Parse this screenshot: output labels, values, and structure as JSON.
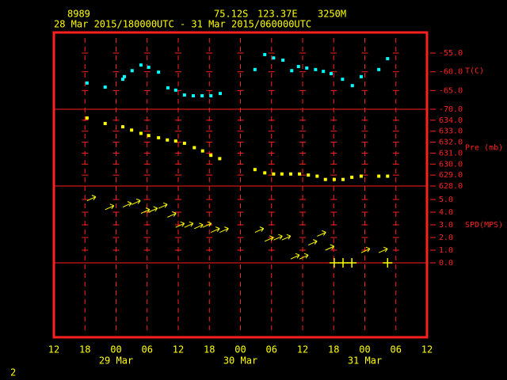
{
  "chart_data": {
    "type": "station-plot",
    "title": "8989",
    "latitude": "75.12S",
    "longitude": "123.37E",
    "elevation": "3250M",
    "subtitle": "28 Mar 2015/180000UTC - 31 Mar 2015/060000UTC",
    "page": "2",
    "xlim": [
      0,
      72
    ],
    "xticks": [
      {
        "value": 0,
        "label": "12"
      },
      {
        "value": 6,
        "label": "18"
      },
      {
        "value": 12,
        "label": "00"
      },
      {
        "value": 18,
        "label": "06"
      },
      {
        "value": 24,
        "label": "12"
      },
      {
        "value": 30,
        "label": "18"
      },
      {
        "value": 36,
        "label": "00"
      },
      {
        "value": 42,
        "label": "06"
      },
      {
        "value": 48,
        "label": "12"
      },
      {
        "value": 54,
        "label": "18"
      },
      {
        "value": 60,
        "label": "00"
      },
      {
        "value": 66,
        "label": "06"
      },
      {
        "value": 72,
        "label": "12"
      }
    ],
    "date_ticks": [
      {
        "value": 12,
        "label": "29 Mar"
      },
      {
        "value": 36,
        "label": "30 Mar"
      },
      {
        "value": 60,
        "label": "31 Mar"
      }
    ],
    "panels": [
      {
        "type": "scatter",
        "ylabel": "T(C)",
        "color": "#00ffff",
        "ylim": [
          -70,
          -49.5
        ],
        "yticks": [
          {
            "value": -55,
            "label": "-55.0"
          },
          {
            "value": -60,
            "label": "-60.0"
          },
          {
            "value": -65,
            "label": "-65.0"
          },
          {
            "value": -70,
            "label": "-70.0"
          }
        ],
        "x": [
          6.4,
          9.9,
          13.3,
          13.6,
          15.1,
          16.8,
          18.3,
          20.2,
          22.0,
          23.5,
          25.2,
          26.9,
          28.6,
          30.3,
          32.1,
          38.8,
          40.7,
          42.4,
          44.2,
          45.9,
          47.2,
          48.8,
          50.5,
          52.0,
          53.5,
          55.7,
          57.6,
          59.3,
          62.7,
          64.4
        ],
        "values": [
          -63.0,
          -64.1,
          -62.0,
          -61.3,
          -59.7,
          -58.2,
          -58.8,
          -60.1,
          -64.3,
          -64.9,
          -66.2,
          -66.4,
          -66.4,
          -66.4,
          -65.8,
          -59.4,
          -55.4,
          -56.3,
          -56.9,
          -59.7,
          -58.6,
          -59.0,
          -59.4,
          -59.9,
          -60.5,
          -62.0,
          -63.7,
          -61.3,
          -59.4,
          -56.5
        ]
      },
      {
        "type": "scatter",
        "ylabel": "Pre (mb)",
        "color": "#ffff00",
        "ylim": [
          628,
          635
        ],
        "yticks": [
          {
            "value": 634,
            "label": "634.0"
          },
          {
            "value": 633,
            "label": "633.0"
          },
          {
            "value": 632,
            "label": "632.0"
          },
          {
            "value": 631,
            "label": "631.0"
          },
          {
            "value": 630,
            "label": "630.0"
          },
          {
            "value": 629,
            "label": "629.0"
          },
          {
            "value": 628,
            "label": "628.0"
          }
        ],
        "x": [
          6.4,
          9.9,
          13.3,
          15.0,
          16.8,
          18.3,
          20.2,
          21.9,
          23.5,
          25.2,
          27.1,
          28.7,
          30.3,
          32.0,
          38.8,
          40.7,
          42.4,
          44.0,
          45.7,
          47.4,
          49.1,
          50.8,
          52.4,
          54.1,
          55.8,
          57.5,
          59.3,
          62.7,
          64.4
        ],
        "values": [
          634.2,
          633.7,
          633.4,
          633.1,
          632.8,
          632.6,
          632.4,
          632.2,
          632.1,
          631.9,
          631.5,
          631.2,
          630.8,
          630.5,
          629.5,
          629.2,
          629.1,
          629.1,
          629.1,
          629.1,
          629.0,
          628.9,
          628.6,
          628.6,
          628.6,
          628.8,
          628.9,
          628.9,
          628.9
        ]
      },
      {
        "type": "wind",
        "ylabel": "SPD(MPS)",
        "color": "#ffff00",
        "ylim": [
          -5.875,
          6.0625
        ],
        "yticks": [
          {
            "value": 5,
            "label": "5.0"
          },
          {
            "value": 4,
            "label": "4.0"
          },
          {
            "value": 3,
            "label": "3.0"
          },
          {
            "value": 2,
            "label": "2.0"
          },
          {
            "value": 1,
            "label": "1.0"
          },
          {
            "value": 0,
            "label": "0.0"
          }
        ],
        "x": [
          6.4,
          9.9,
          13.3,
          15.0,
          16.8,
          18.3,
          20.2,
          21.9,
          23.5,
          25.2,
          27.1,
          28.7,
          30.3,
          32.0,
          38.8,
          40.7,
          42.4,
          44.0,
          45.7,
          47.4,
          49.1,
          50.8,
          52.4,
          54.1,
          55.8,
          57.5,
          59.3,
          62.7,
          64.4
        ],
        "values": [
          4.9,
          4.2,
          4.4,
          4.6,
          3.9,
          4.0,
          4.3,
          3.6,
          2.8,
          2.8,
          2.7,
          2.8,
          2.4,
          2.4,
          2.4,
          1.7,
          1.8,
          1.8,
          0.3,
          0.3,
          1.4,
          2.1,
          1.0,
          0.0,
          0.0,
          0.0,
          0.8,
          0.8,
          0.0
        ]
      }
    ]
  }
}
